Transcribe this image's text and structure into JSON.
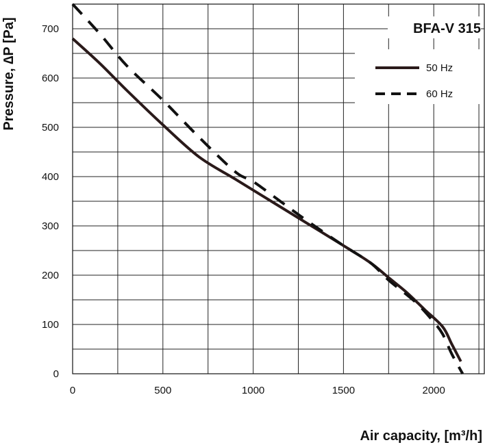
{
  "chart_data": {
    "type": "line",
    "title": "BFA-V 315",
    "xlabel": "Air capacity, [m³/h]",
    "ylabel": "Pressure, ∆P [Pa]",
    "xlim": [
      0,
      2280
    ],
    "ylim": [
      0,
      750
    ],
    "x_ticks": [
      0,
      500,
      1000,
      1500,
      2000
    ],
    "y_ticks": [
      0,
      100,
      200,
      300,
      400,
      500,
      600,
      700
    ],
    "x_tick_labels": [
      "0",
      "500",
      "1000",
      "1500",
      "2000"
    ],
    "y_tick_labels": [
      "0",
      "100",
      "200",
      "300",
      "400",
      "500",
      "600",
      "700"
    ],
    "grid": true,
    "legend_position": "top-right",
    "series": [
      {
        "name": "50 Hz",
        "style": "solid",
        "color": "#2a1a1a",
        "points": [
          [
            0,
            680
          ],
          [
            150,
            630
          ],
          [
            300,
            575
          ],
          [
            500,
            505
          ],
          [
            700,
            440
          ],
          [
            900,
            395
          ],
          [
            1100,
            350
          ],
          [
            1300,
            305
          ],
          [
            1500,
            260
          ],
          [
            1650,
            225
          ],
          [
            1750,
            195
          ],
          [
            1850,
            165
          ],
          [
            1950,
            130
          ],
          [
            2050,
            95
          ],
          [
            2100,
            60
          ],
          [
            2150,
            25
          ]
        ]
      },
      {
        "name": "60 Hz",
        "style": "dashed",
        "color": "#111111",
        "points": [
          [
            0,
            750
          ],
          [
            150,
            690
          ],
          [
            300,
            625
          ],
          [
            500,
            555
          ],
          [
            700,
            480
          ],
          [
            900,
            410
          ],
          [
            1000,
            390
          ],
          [
            1150,
            350
          ],
          [
            1300,
            310
          ],
          [
            1500,
            260
          ],
          [
            1650,
            225
          ],
          [
            1750,
            190
          ],
          [
            1900,
            145
          ],
          [
            2000,
            105
          ],
          [
            2050,
            80
          ],
          [
            2100,
            40
          ],
          [
            2160,
            0
          ]
        ]
      }
    ]
  }
}
